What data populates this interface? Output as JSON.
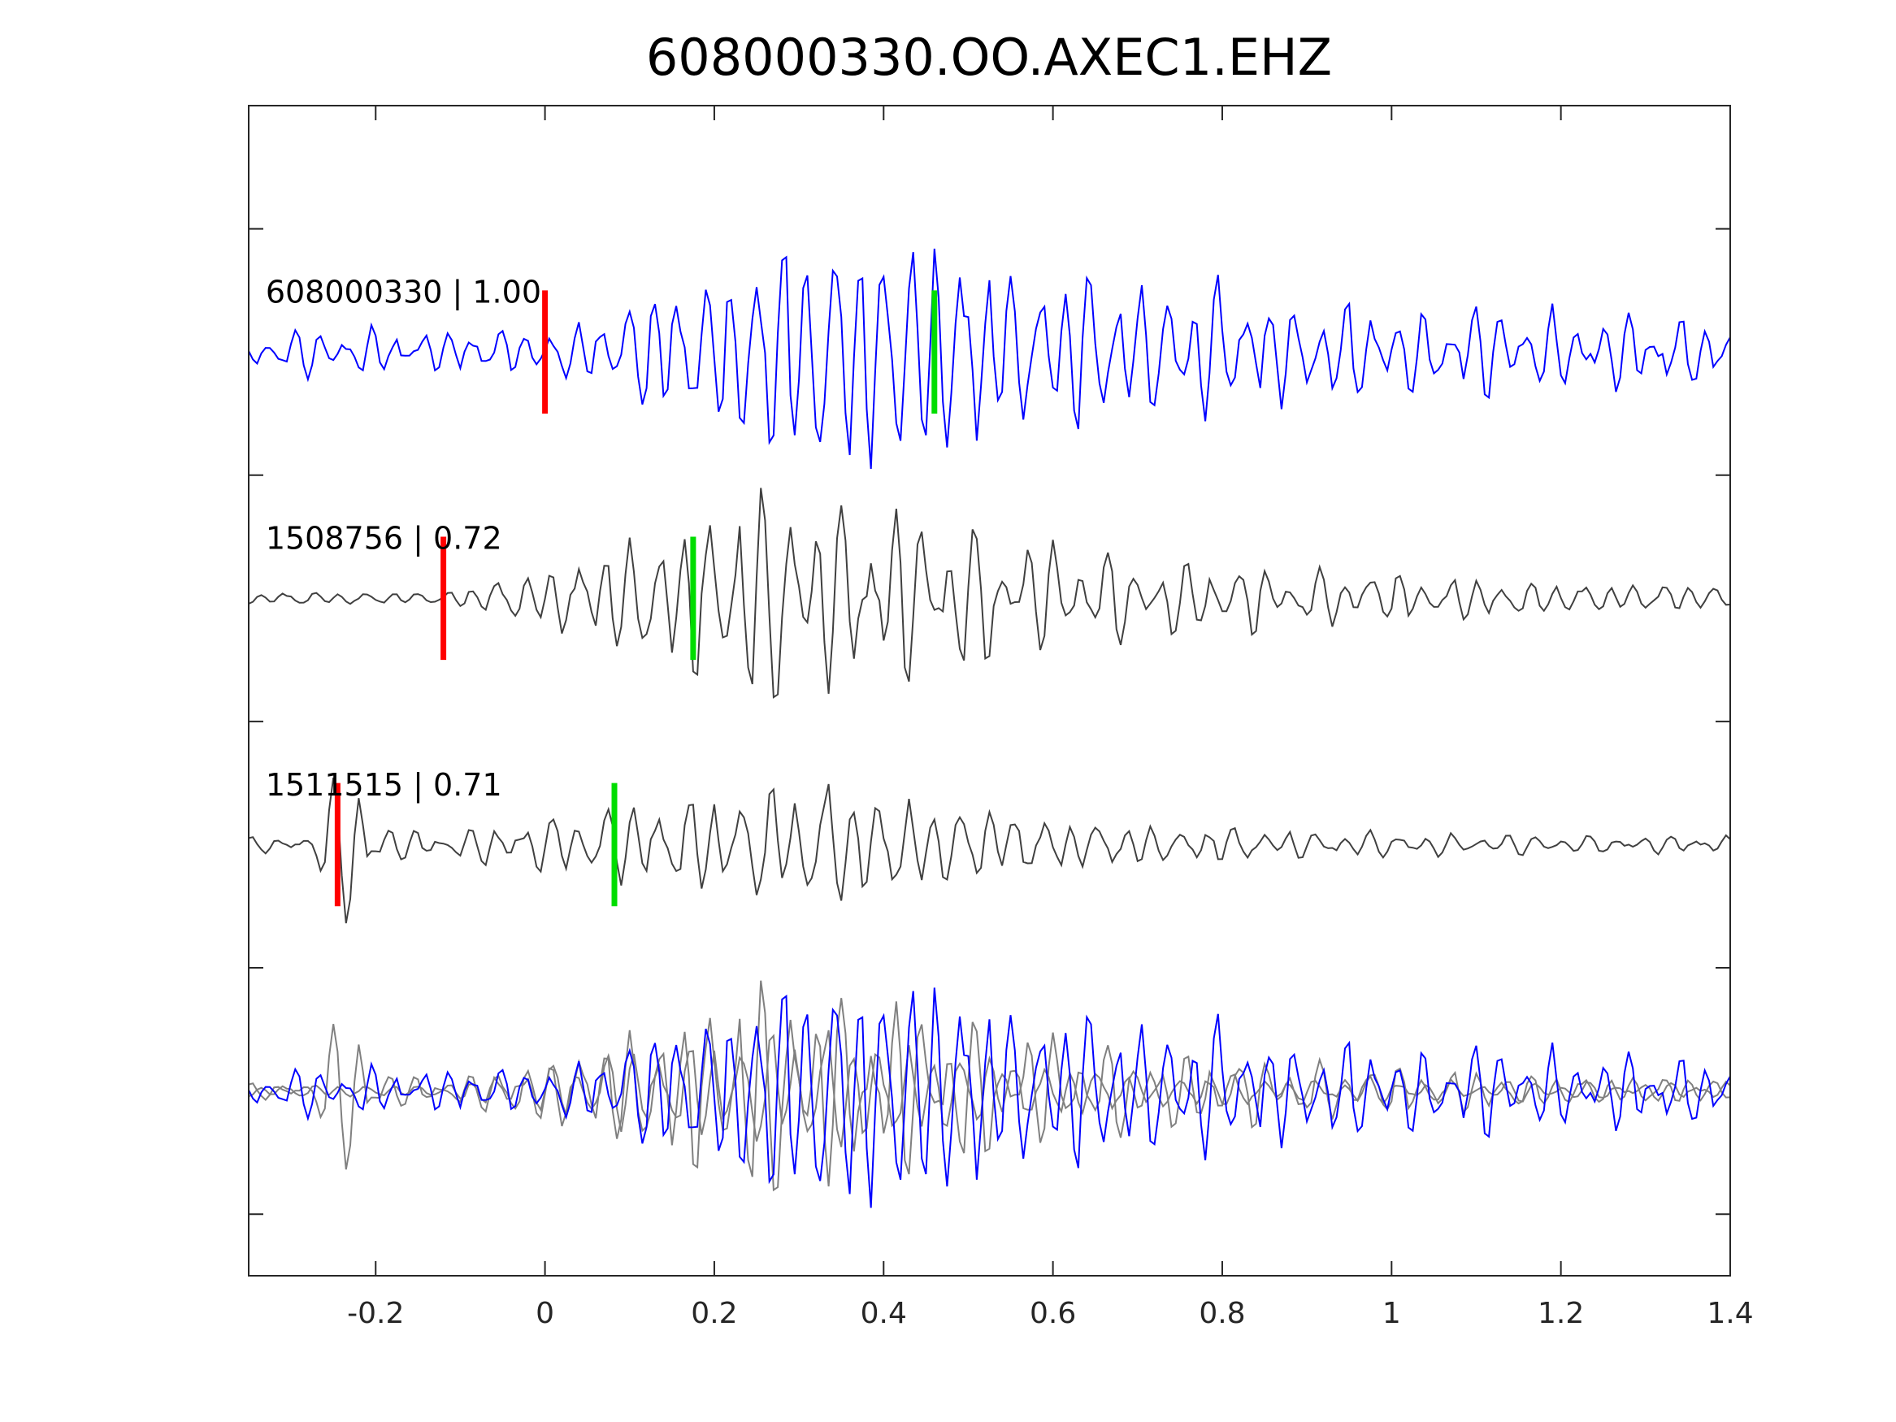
{
  "chart_data": {
    "type": "line",
    "title": "608000330.OO.AXEC1.EHZ",
    "xlabel": "",
    "ylabel": "",
    "xlim": [
      -0.35,
      1.4
    ],
    "ylim": [
      -0.75,
      4
    ],
    "xticks": [
      -0.2,
      0,
      0.2,
      0.4,
      0.6,
      0.8,
      1,
      1.2,
      1.4
    ],
    "xtick_labels": [
      "-0.2",
      "0",
      "0.2",
      "0.4",
      "0.6",
      "0.8",
      "1",
      "1.2",
      "1.4"
    ],
    "yticks": [
      -0.5,
      0.5,
      1.5,
      2.5,
      3.5
    ],
    "grid": false,
    "colors": {
      "primary": "#0000ff",
      "secondary": "#404040",
      "stack": "#808080",
      "p_pick": "#ff0000",
      "s_pick": "#00dd00"
    },
    "traces": [
      {
        "name": "608000330",
        "label": "608000330 | 1.00",
        "offset": 3,
        "color": "#0000ff",
        "p_pick": 0.0,
        "s_pick": 0.46,
        "noise": 0.09,
        "peak_time": 0.32,
        "peak_amp": 0.5,
        "decay": 0.45,
        "freq": 33,
        "seed": 11
      },
      {
        "name": "1508756",
        "label": "1508756 | 0.72",
        "offset": 2,
        "color": "#404040",
        "p_pick": -0.12,
        "s_pick": 0.175,
        "noise": 0.025,
        "peak_time": 0.27,
        "peak_amp": 0.45,
        "decay": 0.4,
        "freq": 32,
        "seed": 23
      },
      {
        "name": "1511515",
        "label": "1511515 | 0.71",
        "offset": 1,
        "color": "#404040",
        "p_pick": -0.245,
        "s_pick": 0.082,
        "noise": 0.03,
        "peak_time": 0.33,
        "peak_amp": 0.25,
        "decay": 0.25,
        "freq": 31,
        "seed": 37,
        "early_spike": -0.23
      }
    ],
    "stack": {
      "offset": 0,
      "description_free": true
    }
  }
}
